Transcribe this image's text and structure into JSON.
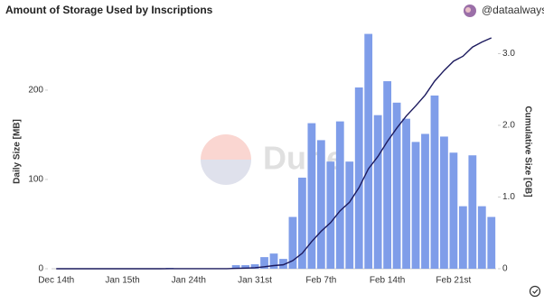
{
  "header": {
    "title": "Amount of Storage Used by Inscriptions",
    "handle": "@dataalways"
  },
  "watermark": "Dune",
  "chart_data": {
    "type": "bar",
    "categories": [
      "Dec 14th",
      null,
      null,
      null,
      null,
      null,
      null,
      "Jan 15th",
      null,
      null,
      null,
      null,
      null,
      null,
      "Jan 24th",
      null,
      null,
      null,
      null,
      null,
      null,
      "Jan 31st",
      null,
      null,
      null,
      null,
      null,
      null,
      "Feb 7th",
      null,
      null,
      null,
      null,
      null,
      null,
      "Feb 14th",
      null,
      null,
      null,
      null,
      null,
      null,
      "Feb 21st",
      null,
      null,
      null,
      null
    ],
    "ylabel": "Daily Size [MB]",
    "y2label": "Cumulative Size [GB]",
    "ylim": [
      0,
      265
    ],
    "yticks": [
      0,
      100,
      200
    ],
    "y2lim": [
      0,
      3.3
    ],
    "y2ticks": [
      0,
      {
        "value": 1,
        "label": "1.0"
      },
      {
        "value": 2,
        "label": "2.0"
      },
      {
        "value": 3,
        "label": "3.0"
      }
    ],
    "grid": false,
    "series": [
      {
        "type": "bar",
        "color": "#7f9de9",
        "values": [
          0,
          0,
          0,
          0,
          0,
          0,
          0,
          0,
          0,
          0,
          0,
          0,
          1,
          0,
          0,
          0,
          0,
          0,
          0,
          4,
          4,
          5,
          13,
          17,
          11,
          58,
          102,
          163,
          144,
          120,
          165,
          120,
          203,
          263,
          172,
          210,
          186,
          168,
          142,
          151,
          194,
          148,
          130,
          70,
          127,
          70,
          58
        ]
      },
      {
        "type": "line",
        "axis": "y2",
        "color": "#1c1a5e",
        "values": [
          0,
          0,
          0,
          0,
          0,
          0,
          0,
          0,
          0,
          0,
          0,
          0,
          0.001,
          0.001,
          0.001,
          0.001,
          0.001,
          0.001,
          0.001,
          0.005,
          0.009,
          0.014,
          0.027,
          0.044,
          0.055,
          0.113,
          0.215,
          0.378,
          0.522,
          0.642,
          0.807,
          0.927,
          1.13,
          1.393,
          1.565,
          1.775,
          1.961,
          2.129,
          2.271,
          2.422,
          2.616,
          2.764,
          2.894,
          2.964,
          3.091,
          3.161,
          3.219
        ]
      }
    ]
  }
}
